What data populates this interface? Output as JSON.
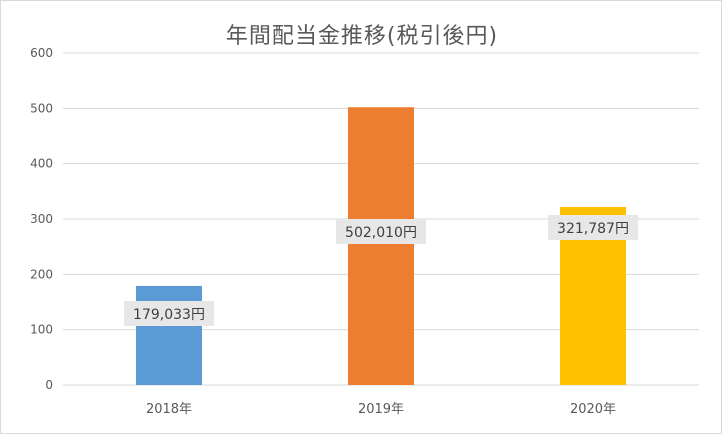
{
  "chart_data": {
    "type": "bar",
    "title": "年間配当金推移(税引後円)",
    "categories": [
      "2018年",
      "2019年",
      "2020年"
    ],
    "values": [
      179.033,
      502.01,
      321.787
    ],
    "data_labels": [
      "179,033円",
      "502,010円",
      "321,787円"
    ],
    "colors": [
      "#5b9bd5",
      "#ed7d31",
      "#ffc000"
    ],
    "ylim": [
      0,
      600
    ],
    "yticks": [
      "0",
      "100",
      "200",
      "300",
      "400",
      "500",
      "600"
    ],
    "xlabel": "",
    "ylabel": "",
    "grid": true,
    "legend": "none"
  }
}
